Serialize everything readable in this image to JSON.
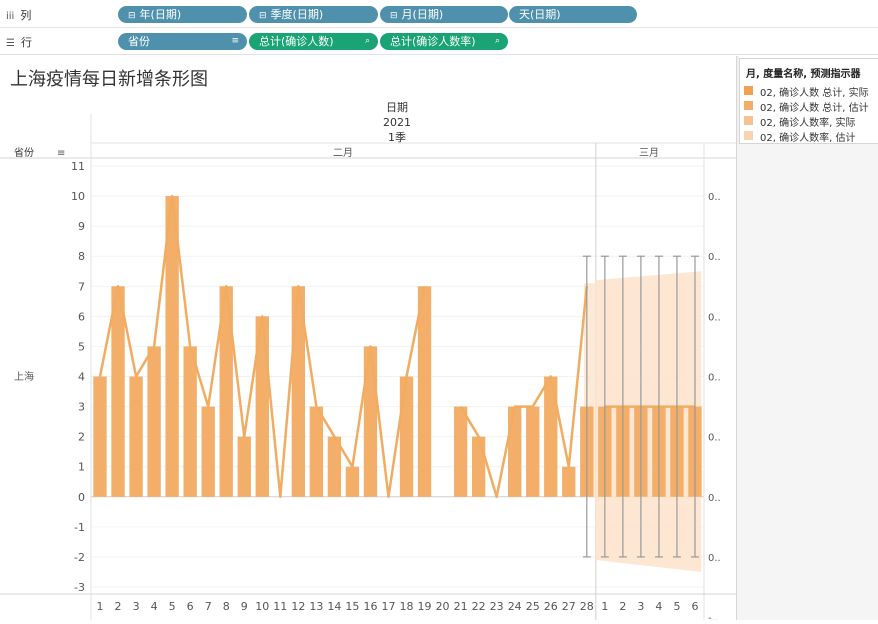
{
  "shelves": {
    "columns": {
      "label": "列",
      "icon": "columns-icon",
      "pills": [
        {
          "text": "年(日期)",
          "prefix": "⊟"
        },
        {
          "text": "季度(日期)",
          "prefix": "⊟"
        },
        {
          "text": "月(日期)",
          "prefix": "⊟"
        },
        {
          "text": "天(日期)",
          "prefix": ""
        }
      ]
    },
    "rows": {
      "label": "行",
      "icon": "rows-icon",
      "pills": [
        {
          "text": "省份",
          "suffix": "sort-icon"
        },
        {
          "text": "总计(确诊人数)",
          "suffix": "forecast-icon"
        },
        {
          "text": "总计(确诊人数率)",
          "suffix": "forecast-icon"
        }
      ]
    }
  },
  "chart_title": "上海疫情每日新增条形图",
  "header": {
    "field": "日期",
    "year": "2021",
    "quarter": "1季",
    "months": [
      "二月",
      "三月"
    ],
    "row_field": "省份",
    "row_value": "上海"
  },
  "legend": {
    "title": "月, 度量名称, 预测指示器",
    "items": [
      {
        "label": "02, 确诊人数 总计, 实际",
        "color": "#f0a050"
      },
      {
        "label": "02, 确诊人数 总计, 估计",
        "color": "#f3ae6a"
      },
      {
        "label": "02, 确诊人数率, 实际",
        "color": "#f6c28e"
      },
      {
        "label": "02, 确诊人数率, 估计",
        "color": "#f9d3b0"
      }
    ]
  },
  "colors": {
    "bar": "#f3ae6a",
    "line": "#f1ac62",
    "band": "#fde3cb",
    "pill_blue": "#4f91ad",
    "pill_green": "#1aa375",
    "whisker": "#999999"
  },
  "chart_data": {
    "type": "bar",
    "x": [
      "1",
      "2",
      "3",
      "4",
      "5",
      "6",
      "7",
      "8",
      "9",
      "10",
      "11",
      "12",
      "13",
      "14",
      "15",
      "16",
      "17",
      "18",
      "19",
      "20",
      "21",
      "22",
      "23",
      "24",
      "25",
      "26",
      "27",
      "28",
      "1",
      "2",
      "3",
      "4",
      "5",
      "6"
    ],
    "month": [
      "二月",
      "二月",
      "二月",
      "二月",
      "二月",
      "二月",
      "二月",
      "二月",
      "二月",
      "二月",
      "二月",
      "二月",
      "二月",
      "二月",
      "二月",
      "二月",
      "二月",
      "二月",
      "二月",
      "二月",
      "二月",
      "二月",
      "二月",
      "二月",
      "二月",
      "二月",
      "二月",
      "二月",
      "三月",
      "三月",
      "三月",
      "三月",
      "三月",
      "三月"
    ],
    "series": [
      {
        "values": [
          4,
          7,
          4,
          5,
          10,
          5,
          3,
          7,
          2,
          6,
          null,
          7,
          3,
          2,
          1,
          5,
          null,
          4,
          7,
          null,
          3,
          2,
          null,
          3,
          3,
          4,
          1,
          3,
          3,
          3,
          3,
          3,
          3,
          3
        ],
        "forecast_from_index": 28
      },
      {
        "type": "line",
        "values": [
          4,
          7,
          4,
          5,
          10,
          5,
          3,
          7,
          2,
          6,
          0,
          7,
          3,
          2,
          1,
          5,
          0,
          4,
          7,
          null,
          3,
          2,
          0,
          3,
          3,
          4,
          1,
          7,
          3,
          3,
          3,
          3,
          3,
          3
        ],
        "forecast_from_index": 28
      }
    ],
    "forecast_interval": {
      "low": -2,
      "high": 8,
      "from_index": 27
    },
    "ylim": [
      -3,
      11
    ],
    "y_ticks": [
      -3,
      -2,
      -1,
      0,
      1,
      2,
      3,
      4,
      5,
      6,
      7,
      8,
      9,
      10,
      11
    ],
    "secondary_axis_ticks": [
      "0..",
      "0..",
      "0..",
      "0..",
      "0..",
      "0..",
      "0..",
      "-.."
    ]
  }
}
